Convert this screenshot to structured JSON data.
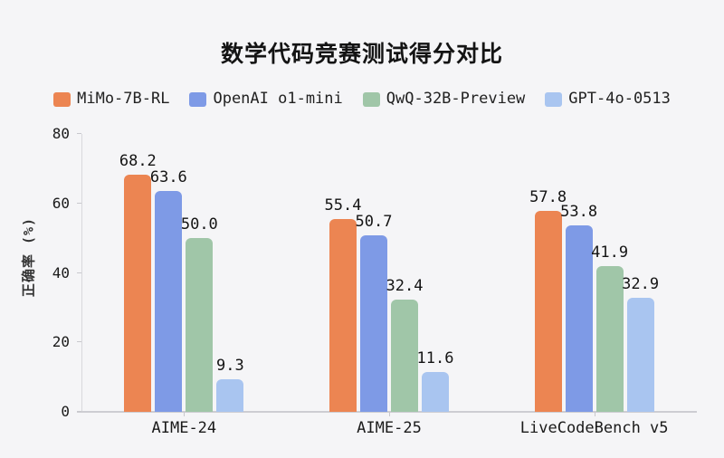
{
  "title": "数学代码竞赛测试得分对比",
  "colors": {
    "background": "#f5f5f7",
    "axis": "#cdcdd2",
    "text": "#1a1a1a"
  },
  "chart_data": {
    "type": "bar",
    "title": "数学代码竞赛测试得分对比",
    "categories": [
      "AIME-24",
      "AIME-25",
      "LiveCodeBench v5"
    ],
    "series": [
      {
        "name": "MiMo-7B-RL",
        "color": "#EC8552",
        "values": [
          68.2,
          55.4,
          57.8
        ]
      },
      {
        "name": "OpenAI o1-mini",
        "color": "#7E9AE6",
        "values": [
          63.6,
          50.7,
          53.8
        ]
      },
      {
        "name": "QwQ-32B-Preview",
        "color": "#A0C6A8",
        "values": [
          50.0,
          32.4,
          41.9
        ]
      },
      {
        "name": "GPT-4o-0513",
        "color": "#A9C5F0",
        "values": [
          9.3,
          11.6,
          32.9
        ]
      }
    ],
    "xlabel": "",
    "ylabel": "正确率 (%)",
    "yticks": [
      0,
      20,
      40,
      60,
      80
    ],
    "ylim": [
      0,
      80
    ],
    "value_label_decimals": 1,
    "legend_position": "top",
    "grid": false
  }
}
